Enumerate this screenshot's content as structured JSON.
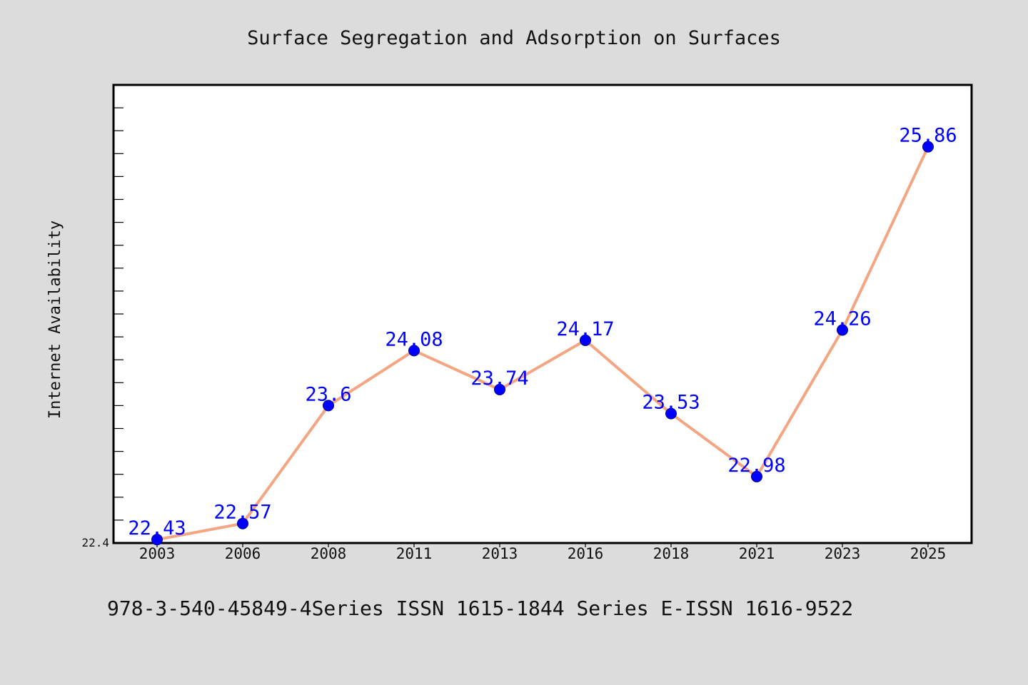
{
  "chart_data": {
    "type": "line",
    "title": "Surface Segregation and Adsorption on Surfaces",
    "xlabel": "",
    "ylabel": "Internet Availability",
    "categories": [
      "2003",
      "2006",
      "2008",
      "2011",
      "2013",
      "2016",
      "2018",
      "2021",
      "2023",
      "2025"
    ],
    "series": [
      {
        "values": [
          22.43,
          22.57,
          23.6,
          24.08,
          23.74,
          24.17,
          23.53,
          22.98,
          24.26,
          25.86
        ],
        "labels": [
          "22.43",
          "22.57",
          "23.6",
          "24.08",
          "23.74",
          "24.17",
          "23.53",
          "22.98",
          "24.26",
          "25.86"
        ]
      }
    ],
    "ylim": [
      22.4,
      26.4
    ],
    "y_tick_labels": [
      "22.4"
    ],
    "grid": false,
    "line_color": "#f4a582",
    "marker_color": "#0000ff",
    "label_color": "#0000ff"
  },
  "footer": "978-3-540-45849-4Series ISSN 1615-1844 Series E-ISSN 1616-9522"
}
